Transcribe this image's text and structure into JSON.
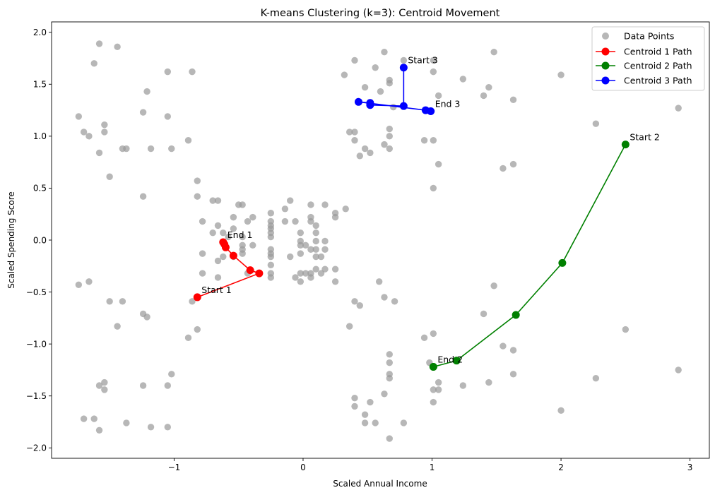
{
  "chart_data": {
    "type": "scatter",
    "title": "K-means Clustering (k=3): Centroid Movement",
    "xlabel": "Scaled Annual Income",
    "ylabel": "Scaled Spending Score",
    "xlim": [
      -1.95,
      3.15
    ],
    "ylim": [
      -2.1,
      2.1
    ],
    "xticks": [
      -1,
      0,
      1,
      2,
      3
    ],
    "yticks": [
      -2.0,
      -1.5,
      -1.0,
      -0.5,
      0.0,
      0.5,
      1.0,
      1.5,
      2.0
    ],
    "xtick_labels": [
      "−1",
      "0",
      "1",
      "2",
      "3"
    ],
    "ytick_labels": [
      "−2.0",
      "−1.5",
      "−1.0",
      "−0.5",
      "0.0",
      "0.5",
      "1.0",
      "1.5",
      "2.0"
    ],
    "legend_placement": "top-right",
    "grid": false,
    "data_points": {
      "name": "Data Points",
      "color": "#999999",
      "points": [
        [
          -1.58,
          1.89
        ],
        [
          -1.44,
          1.86
        ],
        [
          -1.62,
          1.7
        ],
        [
          -1.74,
          1.19
        ],
        [
          -1.7,
          1.04
        ],
        [
          -1.66,
          1.0
        ],
        [
          -1.54,
          1.11
        ],
        [
          -1.54,
          1.04
        ],
        [
          -1.58,
          0.84
        ],
        [
          -1.4,
          0.88
        ],
        [
          -1.37,
          0.88
        ],
        [
          -1.5,
          0.61
        ],
        [
          -1.05,
          1.62
        ],
        [
          -0.86,
          1.62
        ],
        [
          -1.21,
          1.43
        ],
        [
          -1.24,
          1.23
        ],
        [
          -1.05,
          1.19
        ],
        [
          -0.89,
          0.96
        ],
        [
          -1.18,
          0.88
        ],
        [
          -1.02,
          0.88
        ],
        [
          -1.24,
          0.42
        ],
        [
          -1.74,
          -0.43
        ],
        [
          -1.66,
          -0.4
        ],
        [
          -1.5,
          -0.59
        ],
        [
          -1.4,
          -0.59
        ],
        [
          -1.44,
          -0.83
        ],
        [
          -1.24,
          -0.71
        ],
        [
          -1.21,
          -0.74
        ],
        [
          -0.86,
          -0.59
        ],
        [
          -0.82,
          -0.86
        ],
        [
          -0.89,
          -0.94
        ],
        [
          -1.02,
          -1.29
        ],
        [
          -1.05,
          -1.4
        ],
        [
          -1.24,
          -1.4
        ],
        [
          -1.58,
          -1.4
        ],
        [
          -1.54,
          -1.37
        ],
        [
          -1.54,
          -1.44
        ],
        [
          -1.7,
          -1.72
        ],
        [
          -1.62,
          -1.72
        ],
        [
          -1.58,
          -1.83
        ],
        [
          -1.37,
          -1.76
        ],
        [
          -1.18,
          -1.8
        ],
        [
          -1.05,
          -1.8
        ],
        [
          -0.82,
          0.57
        ],
        [
          -0.82,
          0.42
        ],
        [
          -0.78,
          0.18
        ],
        [
          -0.7,
          0.38
        ],
        [
          -0.66,
          0.38
        ],
        [
          -0.7,
          0.07
        ],
        [
          -0.66,
          0.14
        ],
        [
          -0.62,
          0.07
        ],
        [
          -0.58,
          0.03
        ],
        [
          -0.54,
          0.22
        ],
        [
          -0.54,
          0.11
        ],
        [
          -0.5,
          0.34
        ],
        [
          -0.47,
          0.34
        ],
        [
          -0.43,
          0.18
        ],
        [
          -0.39,
          0.22
        ],
        [
          -0.78,
          -0.13
        ],
        [
          -0.78,
          -0.32
        ],
        [
          -0.66,
          -0.2
        ],
        [
          -0.66,
          -0.36
        ],
        [
          -0.62,
          -0.16
        ],
        [
          -0.54,
          -0.16
        ],
        [
          -0.47,
          -0.05
        ],
        [
          -0.47,
          -0.09
        ],
        [
          -0.47,
          -0.13
        ],
        [
          -0.47,
          0.03
        ],
        [
          -0.39,
          -0.05
        ],
        [
          -0.43,
          -0.32
        ],
        [
          -0.25,
          0.26
        ],
        [
          -0.25,
          0.18
        ],
        [
          -0.25,
          0.14
        ],
        [
          -0.25,
          0.11
        ],
        [
          -0.25,
          0.07
        ],
        [
          -0.25,
          0.03
        ],
        [
          -0.25,
          -0.09
        ],
        [
          -0.25,
          -0.13
        ],
        [
          -0.25,
          -0.16
        ],
        [
          -0.25,
          -0.24
        ],
        [
          -0.25,
          -0.32
        ],
        [
          -0.25,
          -0.36
        ],
        [
          -0.14,
          0.3
        ],
        [
          -0.1,
          0.38
        ],
        [
          -0.14,
          0.18
        ],
        [
          -0.06,
          0.18
        ],
        [
          -0.1,
          -0.16
        ],
        [
          -0.06,
          -0.36
        ],
        [
          -0.02,
          -0.32
        ],
        [
          -0.02,
          -0.4
        ],
        [
          -0.02,
          -0.13
        ],
        [
          -0.02,
          -0.01
        ],
        [
          -0.02,
          -0.05
        ],
        [
          -0.02,
          0.07
        ],
        [
          0.02,
          -0.05
        ],
        [
          0.02,
          -0.32
        ],
        [
          0.06,
          -0.32
        ],
        [
          0.06,
          -0.36
        ],
        [
          0.06,
          0.34
        ],
        [
          0.06,
          0.22
        ],
        [
          0.06,
          0.18
        ],
        [
          0.06,
          -0.09
        ],
        [
          0.1,
          -0.28
        ],
        [
          0.1,
          -0.16
        ],
        [
          0.1,
          -0.09
        ],
        [
          0.1,
          -0.01
        ],
        [
          0.1,
          0.07
        ],
        [
          0.1,
          0.14
        ],
        [
          0.14,
          -0.32
        ],
        [
          0.14,
          -0.16
        ],
        [
          0.17,
          -0.01
        ],
        [
          0.17,
          -0.09
        ],
        [
          0.17,
          -0.28
        ],
        [
          0.17,
          0.34
        ],
        [
          0.25,
          0.26
        ],
        [
          0.25,
          0.22
        ],
        [
          0.25,
          -0.28
        ],
        [
          0.25,
          -0.4
        ],
        [
          0.33,
          0.3
        ],
        [
          0.32,
          1.59
        ],
        [
          0.4,
          1.73
        ],
        [
          0.48,
          1.47
        ],
        [
          0.56,
          1.66
        ],
        [
          0.63,
          1.81
        ],
        [
          0.67,
          1.54
        ],
        [
          0.67,
          1.51
        ],
        [
          0.6,
          1.43
        ],
        [
          0.7,
          1.28
        ],
        [
          0.4,
          1.04
        ],
        [
          0.4,
          0.96
        ],
        [
          0.36,
          1.04
        ],
        [
          0.48,
          0.88
        ],
        [
          0.44,
          0.81
        ],
        [
          0.52,
          0.84
        ],
        [
          0.63,
          0.92
        ],
        [
          0.67,
          1.07
        ],
        [
          0.67,
          1.0
        ],
        [
          0.67,
          0.88
        ],
        [
          0.78,
          1.73
        ],
        [
          0.94,
          0.96
        ],
        [
          1.01,
          1.62
        ],
        [
          1.01,
          0.96
        ],
        [
          1.05,
          1.39
        ],
        [
          1.05,
          0.73
        ],
        [
          1.01,
          0.5
        ],
        [
          1.01,
          1.73
        ],
        [
          1.24,
          1.55
        ],
        [
          1.4,
          1.39
        ],
        [
          1.44,
          1.47
        ],
        [
          1.48,
          1.81
        ],
        [
          1.63,
          1.35
        ],
        [
          1.55,
          0.69
        ],
        [
          1.63,
          0.73
        ],
        [
          2.0,
          1.59
        ],
        [
          2.27,
          1.12
        ],
        [
          2.91,
          1.27
        ],
        [
          0.36,
          -0.83
        ],
        [
          0.4,
          -0.59
        ],
        [
          0.44,
          -0.63
        ],
        [
          0.59,
          -0.4
        ],
        [
          0.63,
          -0.55
        ],
        [
          0.71,
          -0.59
        ],
        [
          0.94,
          -0.94
        ],
        [
          1.01,
          -0.9
        ],
        [
          0.98,
          -1.18
        ],
        [
          1.05,
          -1.37
        ],
        [
          1.01,
          -1.44
        ],
        [
          1.05,
          -1.44
        ],
        [
          1.01,
          -1.56
        ],
        [
          1.24,
          -1.4
        ],
        [
          0.4,
          -1.52
        ],
        [
          0.4,
          -1.6
        ],
        [
          0.48,
          -1.68
        ],
        [
          0.48,
          -1.76
        ],
        [
          0.52,
          -1.56
        ],
        [
          0.56,
          -1.76
        ],
        [
          0.63,
          -1.48
        ],
        [
          0.67,
          -1.1
        ],
        [
          0.67,
          -1.18
        ],
        [
          0.67,
          -1.29
        ],
        [
          0.67,
          -1.33
        ],
        [
          0.67,
          -1.91
        ],
        [
          0.78,
          -1.76
        ],
        [
          1.4,
          -0.71
        ],
        [
          1.48,
          -0.44
        ],
        [
          1.44,
          -1.37
        ],
        [
          1.55,
          -1.02
        ],
        [
          1.63,
          -1.06
        ],
        [
          1.63,
          -1.29
        ],
        [
          2.0,
          -1.64
        ],
        [
          2.27,
          -1.33
        ],
        [
          2.5,
          -0.86
        ],
        [
          2.91,
          -1.25
        ]
      ]
    },
    "series": [
      {
        "name": "Centroid 1 Path",
        "color": "#ff0000",
        "x": [
          -0.82,
          -0.34,
          -0.41,
          -0.54,
          -0.6,
          -0.61,
          -0.62
        ],
        "y": [
          -0.55,
          -0.32,
          -0.29,
          -0.15,
          -0.07,
          -0.04,
          -0.02
        ]
      },
      {
        "name": "Centroid 2 Path",
        "color": "#008000",
        "x": [
          2.5,
          2.01,
          1.65,
          1.19,
          1.01,
          1.01
        ],
        "y": [
          0.92,
          -0.22,
          -0.72,
          -1.16,
          -1.22,
          -1.22
        ]
      },
      {
        "name": "Centroid 3 Path",
        "color": "#0000ff",
        "x": [
          0.78,
          0.78,
          0.52,
          0.52,
          0.43,
          0.95,
          0.99
        ],
        "y": [
          1.66,
          1.29,
          1.3,
          1.32,
          1.33,
          1.25,
          1.24
        ]
      }
    ],
    "annotations": [
      {
        "text": "Start 1",
        "x": -0.82,
        "y": -0.55
      },
      {
        "text": "End 1",
        "x": -0.62,
        "y": -0.02
      },
      {
        "text": "Start 2",
        "x": 2.5,
        "y": 0.92
      },
      {
        "text": "End 2",
        "x": 1.01,
        "y": -1.22
      },
      {
        "text": "Start 3",
        "x": 0.78,
        "y": 1.66
      },
      {
        "text": "End 3",
        "x": 0.99,
        "y": 1.24
      }
    ]
  }
}
